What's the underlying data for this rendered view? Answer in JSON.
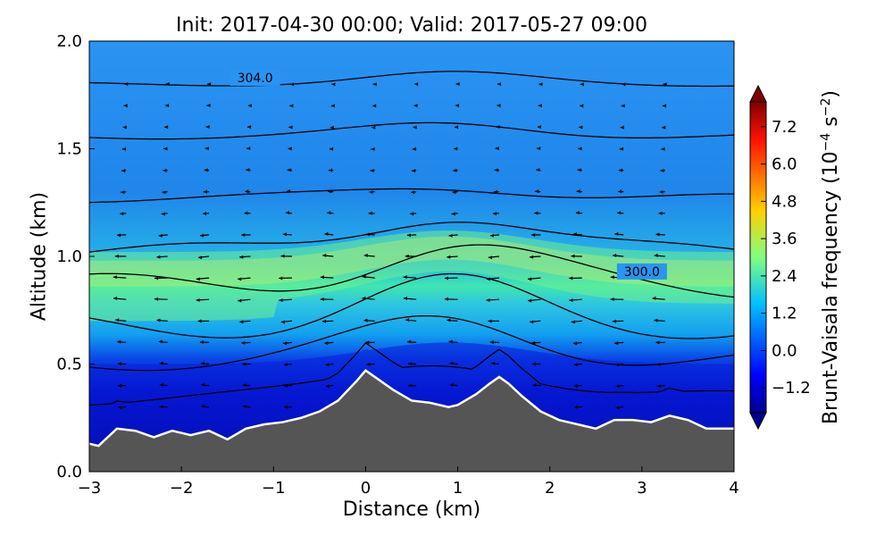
{
  "chart_data": {
    "type": "contour",
    "title": "Init: 2017-04-30 00:00; Valid: 2017-05-27 09:00",
    "xlabel": "Distance (km)",
    "ylabel": "Altitude (km)",
    "xlim": [
      -3,
      4
    ],
    "ylim": [
      0.0,
      2.0
    ],
    "xticks": [
      "−3",
      "−2",
      "−1",
      "0",
      "1",
      "2",
      "3",
      "4"
    ],
    "yticks": [
      "0.0",
      "0.5",
      "1.0",
      "1.5",
      "2.0"
    ],
    "colorbar": {
      "label": "Brunt-Vaisala frequency (10",
      "label_exp": "−4",
      "label_unit": " s",
      "label_unit_exp": "−2",
      "label_close": ")",
      "ticks": [
        "7.2",
        "6.0",
        "4.8",
        "3.6",
        "2.4",
        "1.2",
        "0.0",
        "−1.2"
      ],
      "tick_values": [
        7.2,
        6.0,
        4.8,
        3.6,
        2.4,
        1.2,
        0.0,
        -1.2
      ],
      "range": [
        -2.0,
        8.0
      ]
    },
    "terrain": {
      "x": [
        -3.0,
        -2.9,
        -2.7,
        -2.5,
        -2.3,
        -2.1,
        -1.9,
        -1.7,
        -1.5,
        -1.3,
        -1.1,
        -0.9,
        -0.7,
        -0.5,
        -0.3,
        -0.1,
        0.0,
        0.1,
        0.3,
        0.5,
        0.7,
        0.9,
        1.0,
        1.2,
        1.35,
        1.45,
        1.55,
        1.7,
        1.9,
        2.1,
        2.3,
        2.5,
        2.7,
        2.9,
        3.1,
        3.3,
        3.5,
        3.7,
        3.9,
        4.0
      ],
      "y": [
        0.13,
        0.12,
        0.2,
        0.19,
        0.16,
        0.19,
        0.17,
        0.19,
        0.15,
        0.2,
        0.22,
        0.23,
        0.25,
        0.28,
        0.33,
        0.42,
        0.47,
        0.44,
        0.38,
        0.33,
        0.32,
        0.3,
        0.31,
        0.36,
        0.41,
        0.44,
        0.41,
        0.35,
        0.28,
        0.24,
        0.22,
        0.2,
        0.24,
        0.24,
        0.23,
        0.26,
        0.24,
        0.2,
        0.2,
        0.2
      ]
    },
    "contour_labels": [
      {
        "text": "304.0",
        "x": -1.2,
        "y": 1.83
      },
      {
        "text": "300.0",
        "x": 3.0,
        "y": 0.93
      }
    ],
    "colors": {
      "terrain": "#555555",
      "terrain_edge": "#ffffff",
      "contour": "#000000"
    }
  }
}
